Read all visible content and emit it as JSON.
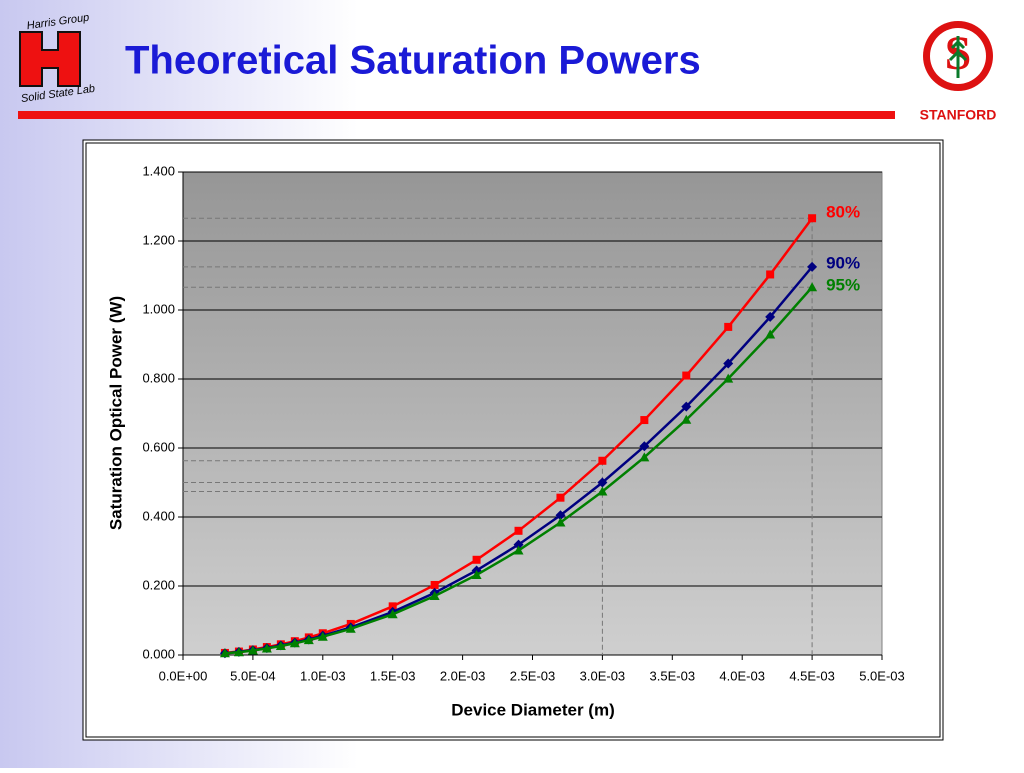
{
  "header": {
    "logo_top": "Harris Group",
    "logo_bottom": "Solid State Lab",
    "title": "Theoretical Saturation Powers",
    "affiliation": "STANFORD"
  },
  "chart_data": {
    "type": "line",
    "x_label": "Device Diameter (m)",
    "y_label": "Saturation Optical Power (W)",
    "x": [
      0.0003,
      0.0004,
      0.0005,
      0.0006,
      0.0007,
      0.0008,
      0.0009,
      0.001,
      0.0012,
      0.0015,
      0.0018,
      0.0021,
      0.0024,
      0.0027,
      0.003,
      0.0033,
      0.0036,
      0.0039,
      0.0042,
      0.0045
    ],
    "series": [
      {
        "name": "80%",
        "color": "#ff0000",
        "marker": "square",
        "values": [
          0.006,
          0.01,
          0.016,
          0.023,
          0.031,
          0.04,
          0.051,
          0.063,
          0.09,
          0.141,
          0.203,
          0.276,
          0.36,
          0.456,
          0.563,
          0.681,
          0.81,
          0.951,
          1.103,
          1.266
        ]
      },
      {
        "name": "90%",
        "color": "#000080",
        "marker": "diamond",
        "values": [
          0.005,
          0.009,
          0.014,
          0.02,
          0.028,
          0.036,
          0.045,
          0.056,
          0.08,
          0.125,
          0.18,
          0.245,
          0.32,
          0.405,
          0.5,
          0.605,
          0.72,
          0.845,
          0.98,
          1.125
        ]
      },
      {
        "name": "95%",
        "color": "#008000",
        "marker": "triangle",
        "values": [
          0.005,
          0.008,
          0.013,
          0.019,
          0.026,
          0.034,
          0.043,
          0.053,
          0.076,
          0.118,
          0.171,
          0.232,
          0.303,
          0.384,
          0.474,
          0.573,
          0.682,
          0.801,
          0.929,
          1.066
        ]
      }
    ],
    "reference_points": [
      14,
      19
    ],
    "xlim": [
      0,
      0.005
    ],
    "xticks": [
      {
        "value": 0,
        "label": "0.0E+00"
      },
      {
        "value": 0.0005,
        "label": "5.0E-04"
      },
      {
        "value": 0.001,
        "label": "1.0E-03"
      },
      {
        "value": 0.0015,
        "label": "1.5E-03"
      },
      {
        "value": 0.002,
        "label": "2.0E-03"
      },
      {
        "value": 0.0025,
        "label": "2.5E-03"
      },
      {
        "value": 0.003,
        "label": "3.0E-03"
      },
      {
        "value": 0.0035,
        "label": "3.5E-03"
      },
      {
        "value": 0.004,
        "label": "4.0E-03"
      },
      {
        "value": 0.0045,
        "label": "4.5E-03"
      },
      {
        "value": 0.005,
        "label": "5.0E-03"
      }
    ],
    "ylim": [
      0,
      1.4
    ],
    "yticks": [
      {
        "value": 0,
        "label": "0.000"
      },
      {
        "value": 0.2,
        "label": "0.200"
      },
      {
        "value": 0.4,
        "label": "0.400"
      },
      {
        "value": 0.6,
        "label": "0.600"
      },
      {
        "value": 0.8,
        "label": "0.800"
      },
      {
        "value": 1.0,
        "label": "1.000"
      },
      {
        "value": 1.2,
        "label": "1.200"
      },
      {
        "value": 1.4,
        "label": "1.400"
      }
    ],
    "grid": true
  }
}
